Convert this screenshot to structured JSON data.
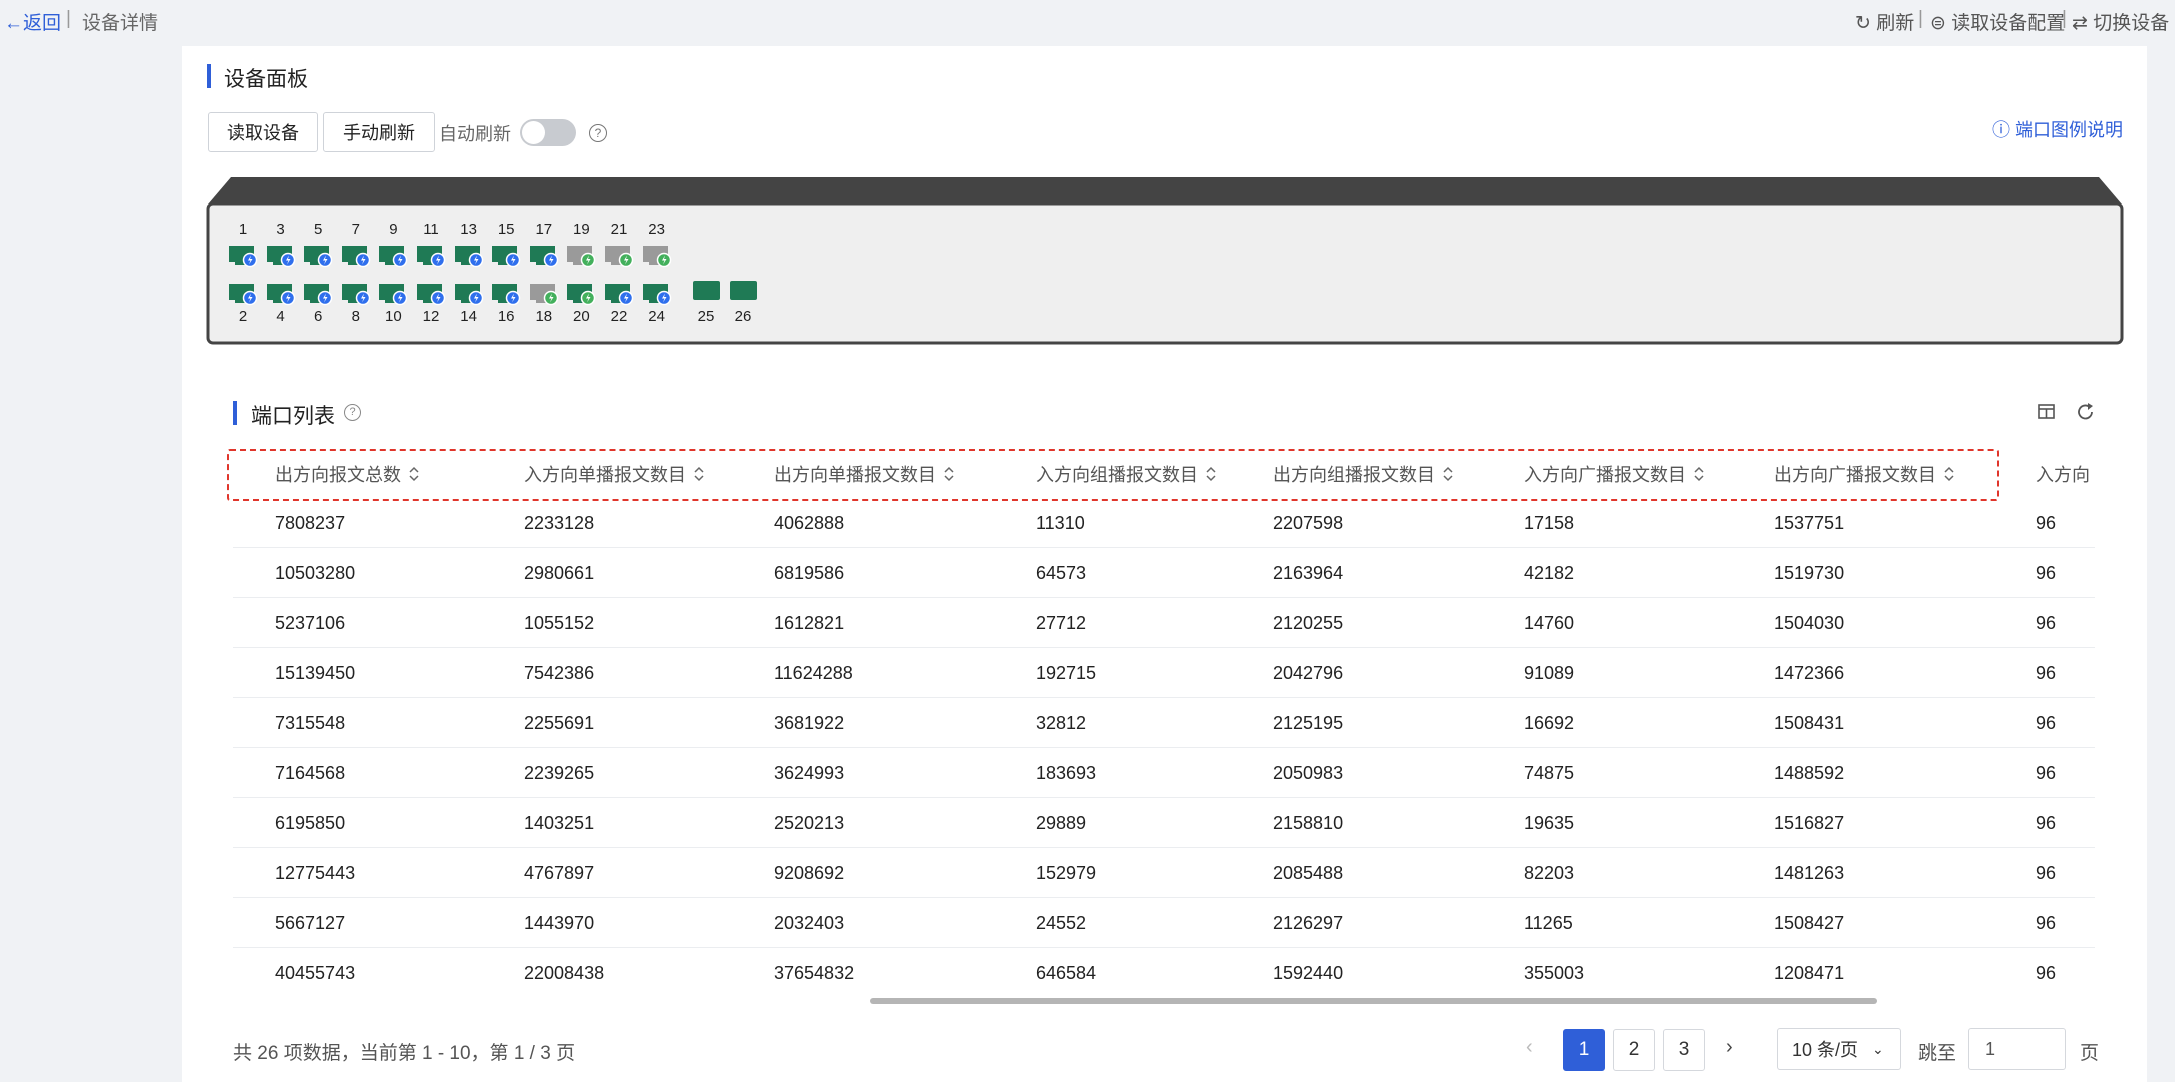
{
  "header": {
    "back": "←返回",
    "separator": "|",
    "title": "设备详情",
    "actions": [
      "刷新",
      "读取设备配置",
      "切换设备"
    ]
  },
  "panel": {
    "title": "设备面板",
    "buttons": [
      "读取设备",
      "手动刷新"
    ],
    "auto_refresh": "自动刷新",
    "legend_link": "端口图例说明",
    "ports_top": [
      "1",
      "3",
      "5",
      "7",
      "9",
      "11",
      "13",
      "15",
      "17",
      "19",
      "21",
      "23"
    ],
    "ports_bottom": [
      "2",
      "4",
      "6",
      "8",
      "10",
      "12",
      "14",
      "16",
      "18",
      "20",
      "22",
      "24"
    ],
    "ports_sfp": [
      "25",
      "26"
    ]
  },
  "table": {
    "title": "端口列表",
    "columns": [
      "出方向报文总数",
      "入方向单播报文数目",
      "出方向单播报文数目",
      "入方向组播报文数目",
      "出方向组播报文数目",
      "入方向广播报文数目",
      "出方向广播报文数目",
      "入方向"
    ],
    "rows": [
      [
        "7808237",
        "2233128",
        "4062888",
        "11310",
        "2207598",
        "17158",
        "1537751",
        "96"
      ],
      [
        "10503280",
        "2980661",
        "6819586",
        "64573",
        "2163964",
        "42182",
        "1519730",
        "96"
      ],
      [
        "5237106",
        "1055152",
        "1612821",
        "27712",
        "2120255",
        "14760",
        "1504030",
        "96"
      ],
      [
        "15139450",
        "7542386",
        "11624288",
        "192715",
        "2042796",
        "91089",
        "1472366",
        "96"
      ],
      [
        "7315548",
        "2255691",
        "3681922",
        "32812",
        "2125195",
        "16692",
        "1508431",
        "96"
      ],
      [
        "7164568",
        "2239265",
        "3624993",
        "183693",
        "2050983",
        "74875",
        "1488592",
        "96"
      ],
      [
        "6195850",
        "1403251",
        "2520213",
        "29889",
        "2158810",
        "19635",
        "1516827",
        "96"
      ],
      [
        "12775443",
        "4767897",
        "9208692",
        "152979",
        "2085488",
        "82203",
        "1481263",
        "96"
      ],
      [
        "5667127",
        "1443970",
        "2032403",
        "24552",
        "2126297",
        "11265",
        "1508427",
        "96"
      ],
      [
        "40455743",
        "22008438",
        "37654832",
        "646584",
        "1592440",
        "355003",
        "1208471",
        "96"
      ]
    ]
  },
  "pagination": {
    "summary": "共 26 项数据，当前第 1 - 10，第 1 / 3 页",
    "pages": [
      "1",
      "2",
      "3"
    ],
    "page_size": "10 条/页",
    "jump": "跳至",
    "jump_value": "1",
    "unit": "页"
  }
}
